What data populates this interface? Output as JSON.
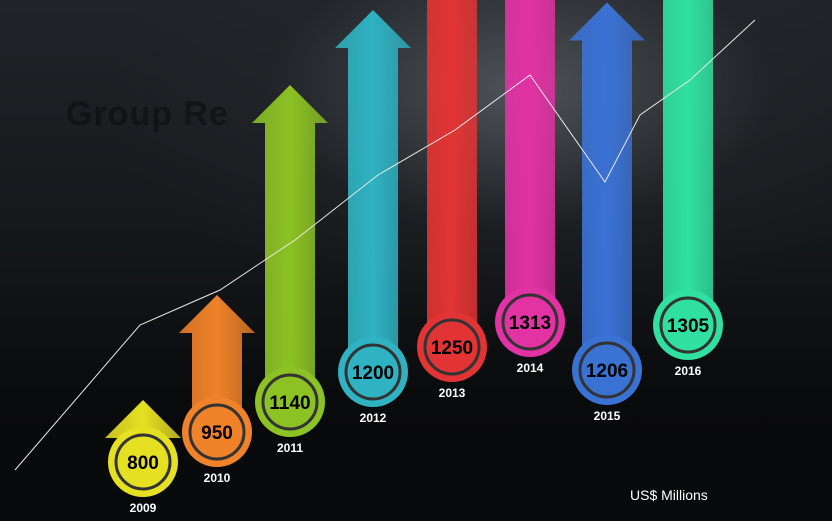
{
  "chart_data": {
    "type": "bar",
    "title": "Group Re",
    "unit_label": "US$ Millions",
    "categories": [
      "2009",
      "2010",
      "2011",
      "2012",
      "2013",
      "2014",
      "2015",
      "2016"
    ],
    "values": [
      800,
      950,
      1140,
      1200,
      1250,
      1313,
      1206,
      1305
    ],
    "colors": [
      "#e6e022",
      "#f0822a",
      "#8cc224",
      "#2fb2c2",
      "#e23434",
      "#e232a4",
      "#3a72d4",
      "#30e0a2"
    ],
    "trend_line": true
  }
}
